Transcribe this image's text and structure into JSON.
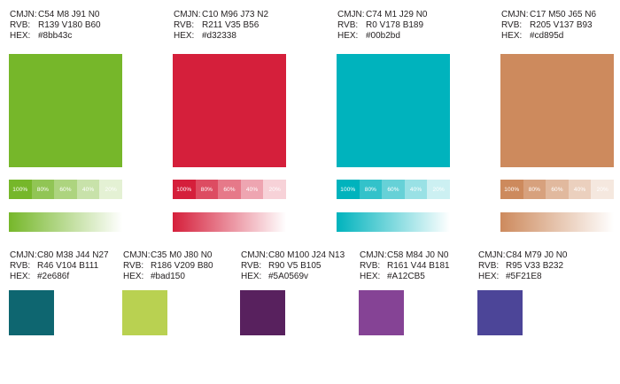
{
  "primary": [
    {
      "cmjn": "C54 M8 J91 N0",
      "rvb": "R139 V180 B60",
      "hex": "#8bb43c",
      "color": "#76b72a"
    },
    {
      "cmjn": "C10 M96 J73 N2",
      "rvb": "R211 V35 B56",
      "hex": "#d32338",
      "color": "#d51f3b"
    },
    {
      "cmjn": "C74 M1 J29 N0",
      "rvb": "R0 V178 B189",
      "hex": "#00b2bd",
      "color": "#00b3bd"
    },
    {
      "cmjn": "C17 M50 J65 N6",
      "rvb": "R205 V137 B93",
      "hex": "#cd895d",
      "color": "#cd8a5d"
    }
  ],
  "tint_labels": [
    "100%",
    "80%",
    "60%",
    "40%",
    "20%"
  ],
  "secondary": [
    {
      "cmjn": "C80 M38 J44 N27",
      "rvb": "R46 V104 B111",
      "hex": "#2e686f",
      "color": "#0e6670"
    },
    {
      "cmjn": "C35 M0 J80 N0",
      "rvb": "R186 V209 B80",
      "hex": "#bad150",
      "color": "#b9d151"
    },
    {
      "cmjn": "C80 M100 J24 N13",
      "rvb": "R90 V5 B105",
      "hex": "#5A0569v",
      "color": "#58215e"
    },
    {
      "cmjn": "C58 M84 J0 N0",
      "rvb": "R161 V44 B181",
      "hex": "#A12CB5",
      "color": "#854395"
    },
    {
      "cmjn": "C84 M79 J0 N0",
      "rvb": "R95 V33 B232",
      "hex": "#5F21E8",
      "color": "#4c4598"
    }
  ],
  "labels": {
    "cmjn": "CMJN:",
    "rvb": "RVB:",
    "hex": "HEX:"
  }
}
